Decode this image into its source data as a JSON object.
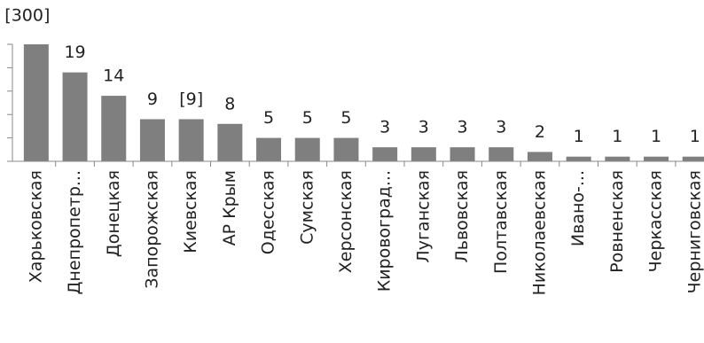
{
  "chart_data": {
    "type": "bar",
    "categories": [
      "Харьковская",
      "Днепропетр...",
      "Донецкая",
      "Запорожская",
      "Киевская",
      "АР Крым",
      "Одесская",
      "Сумская",
      "Херсонская",
      "Кировоград...",
      "Луганская",
      "Львовская",
      "Полтавская",
      "Николаевская",
      "Ивано-...",
      "Ровненская",
      "Черкасская",
      "Черниговская"
    ],
    "values": [
      300,
      19,
      14,
      9,
      9,
      8,
      5,
      5,
      5,
      3,
      3,
      3,
      3,
      2,
      1,
      1,
      1,
      1
    ],
    "value_labels": [
      "[300]",
      "19",
      "14",
      "9",
      "[9]",
      "8",
      "5",
      "5",
      "5",
      "3",
      "3",
      "3",
      "3",
      "2",
      "1",
      "1",
      "1",
      "1"
    ],
    "color": "#7f7f7f",
    "ylim": [
      0,
      25
    ],
    "yticks": [
      0,
      5,
      10,
      15,
      20,
      25
    ]
  }
}
